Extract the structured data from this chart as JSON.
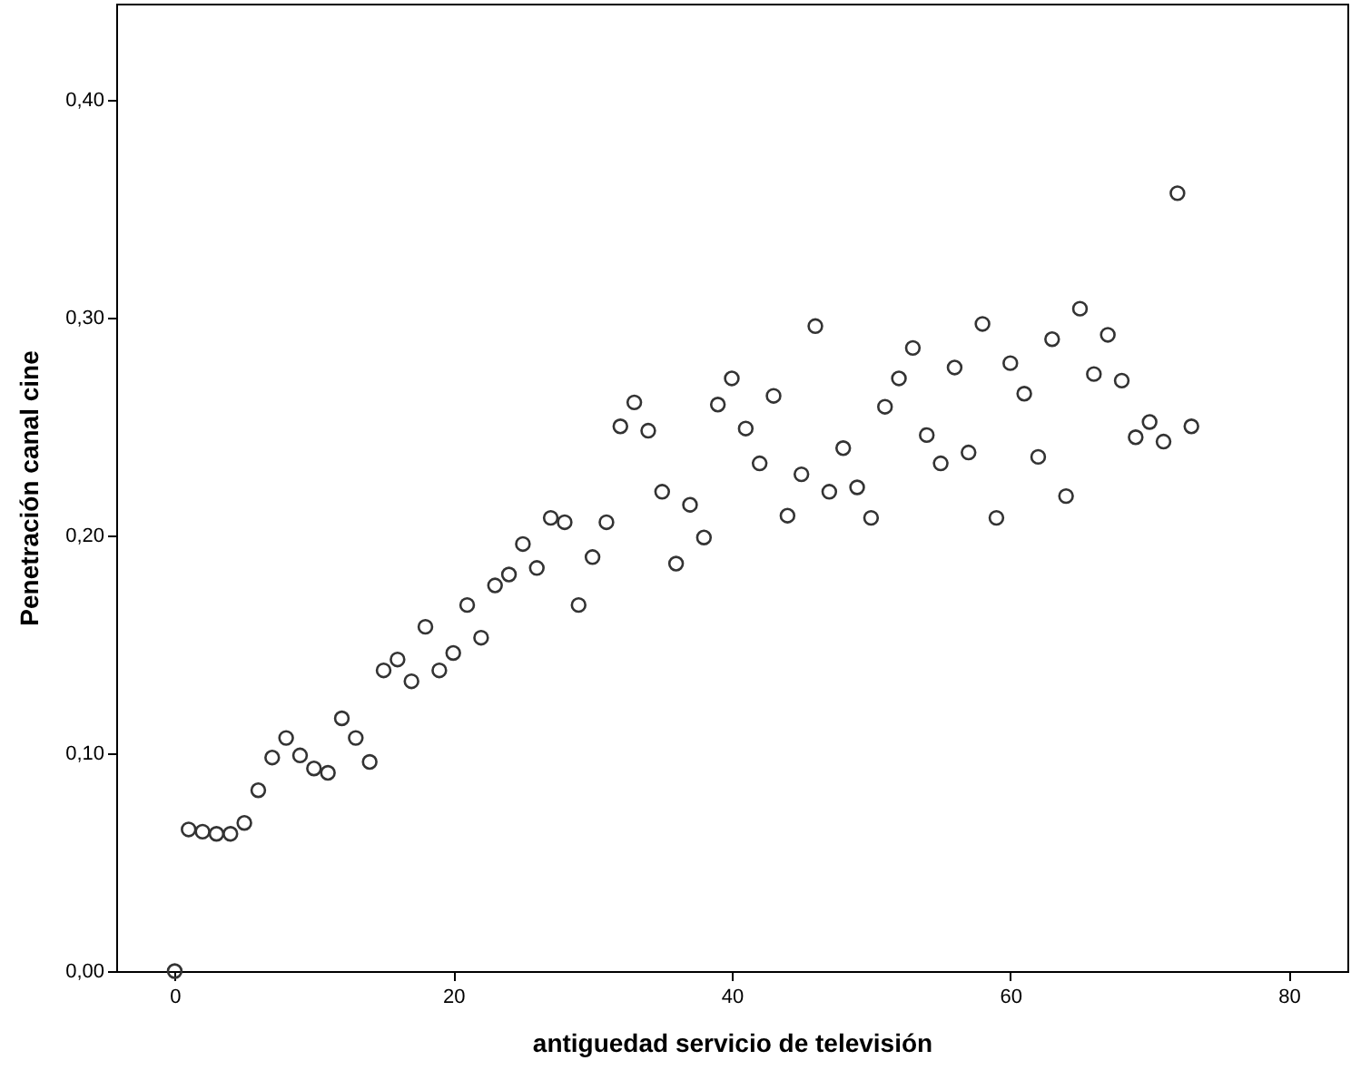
{
  "chart_data": {
    "type": "scatter",
    "xlabel": "antiguedad servicio de televisión",
    "ylabel": "Penetración canal cine",
    "x": [
      0,
      1,
      2,
      3,
      4,
      5,
      6,
      7,
      8,
      9,
      10,
      11,
      12,
      13,
      14,
      15,
      16,
      17,
      18,
      19,
      20,
      21,
      22,
      23,
      24,
      25,
      26,
      27,
      28,
      29,
      30,
      31,
      32,
      33,
      34,
      35,
      36,
      37,
      38,
      39,
      40,
      41,
      42,
      43,
      44,
      45,
      46,
      47,
      48,
      49,
      50,
      51,
      52,
      53,
      54,
      55,
      56,
      57,
      58,
      59,
      60,
      61,
      62,
      63,
      64,
      65,
      66,
      67,
      68,
      69,
      70,
      71,
      72,
      73
    ],
    "series": [
      {
        "color": "#333333",
        "values": [
          0.0,
          0.065,
          0.064,
          0.063,
          0.063,
          0.068,
          0.083,
          0.098,
          0.107,
          0.099,
          0.093,
          0.091,
          0.116,
          0.107,
          0.096,
          0.138,
          0.143,
          0.133,
          0.158,
          0.138,
          0.146,
          0.168,
          0.153,
          0.177,
          0.182,
          0.196,
          0.185,
          0.208,
          0.206,
          0.168,
          0.19,
          0.206,
          0.25,
          0.261,
          0.248,
          0.22,
          0.187,
          0.214,
          0.199,
          0.26,
          0.272,
          0.249,
          0.233,
          0.264,
          0.209,
          0.228,
          0.296,
          0.22,
          0.24,
          0.222,
          0.208,
          0.259,
          0.272,
          0.286,
          0.246,
          0.233,
          0.277,
          0.238,
          0.297,
          0.208,
          0.279,
          0.265,
          0.236,
          0.29,
          0.218,
          0.304,
          0.274,
          0.292,
          0.271,
          0.245,
          0.252,
          0.243,
          0.357,
          0.25
        ]
      }
    ],
    "xlim": [
      -4.2,
      84.2
    ],
    "xticks": [
      0,
      20,
      40,
      60,
      80
    ],
    "ylim": [
      0,
      0.444
    ],
    "yticks": [
      {
        "value": 0,
        "label": "0,00"
      },
      {
        "value": 0.1,
        "label": "0,10"
      },
      {
        "value": 0.2,
        "label": "0,20"
      },
      {
        "value": 0.3,
        "label": "0,30"
      },
      {
        "value": 0.4,
        "label": "0,40"
      }
    ],
    "grid": false,
    "marker": "circle"
  }
}
